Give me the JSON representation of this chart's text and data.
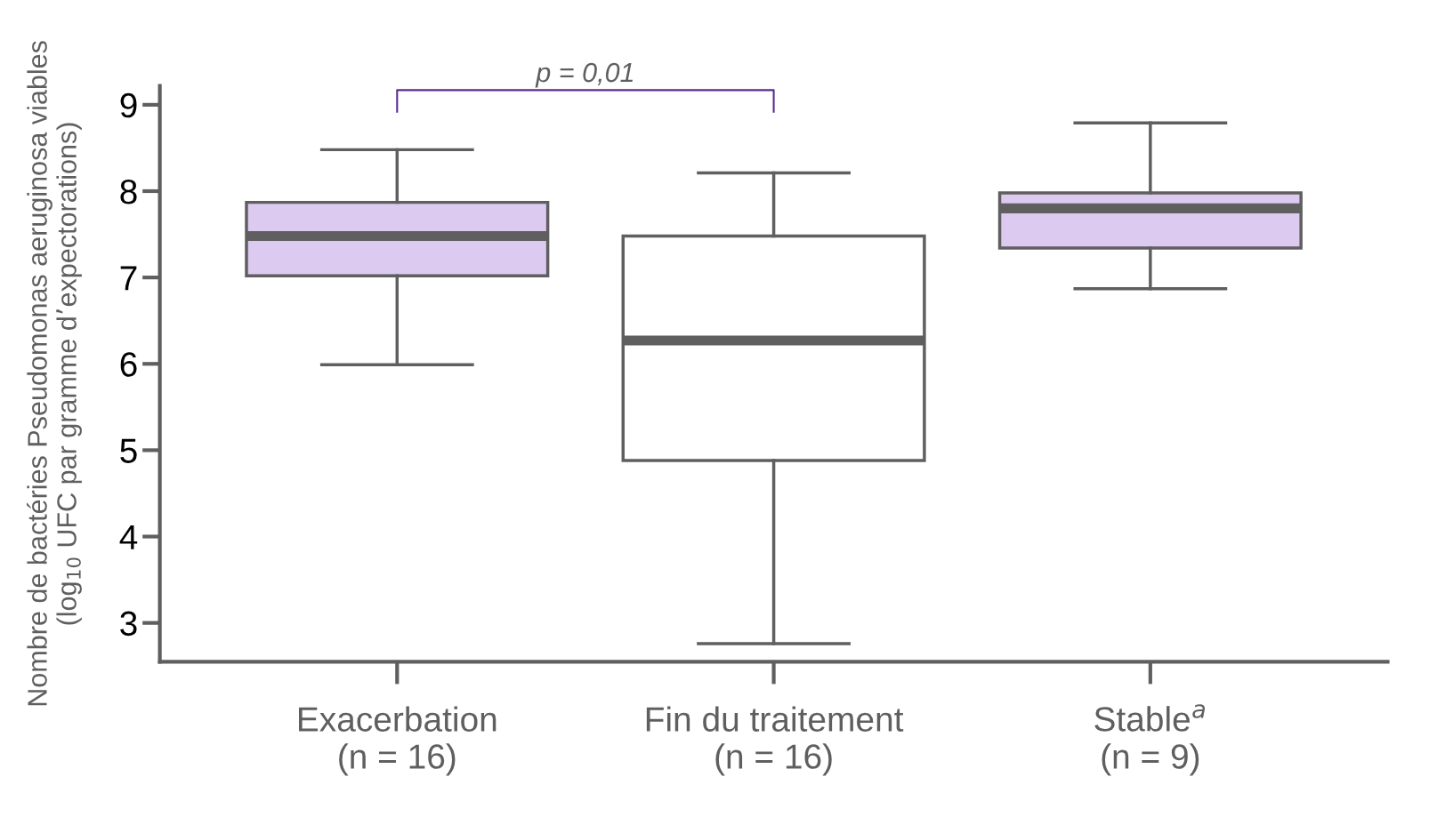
{
  "chart_data": {
    "type": "box",
    "ylabel": "Nombre de bactéries Pseudomonas aeruginosa viables\n(log$_{10}$ UFC par gramme d’expectorations)",
    "categories": [
      "Exacerbation\n(n = 16)",
      "Fin du traitement\n(n = 16)",
      "Stable$^{a}$\n(n = 9)"
    ],
    "boxes": [
      {
        "low": 5.99,
        "q1": 7.02,
        "median": 7.48,
        "q3": 7.87,
        "high": 8.48
      },
      {
        "low": 2.76,
        "q1": 4.88,
        "median": 6.27,
        "q3": 7.48,
        "high": 8.21
      },
      {
        "low": 6.87,
        "q1": 7.34,
        "median": 7.8,
        "q3": 7.98,
        "high": 8.79
      }
    ],
    "colors": [
      "#dccaf0",
      "#ffffff",
      "#dccaf0"
    ],
    "ylim": [
      2.55,
      9.22
    ],
    "yticks": [
      3,
      4,
      5,
      6,
      7,
      8,
      9
    ],
    "grid": false,
    "annotations": [
      "p = 0,01"
    ]
  }
}
